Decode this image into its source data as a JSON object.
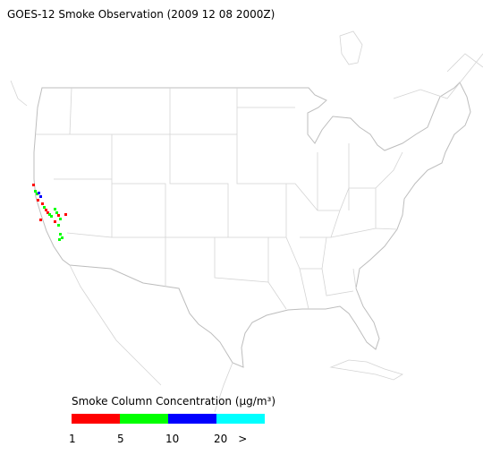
{
  "title": "GOES-12 Smoke Observation (2009 12 08  2000Z)",
  "legend": {
    "title": "Smoke Column Concentration (μg/m³)",
    "colors": [
      "#ff0000",
      "#00ff00",
      "#0000ff",
      "#00ffff"
    ],
    "ticks": [
      "1",
      "5",
      "10",
      "20",
      ">"
    ]
  }
}
